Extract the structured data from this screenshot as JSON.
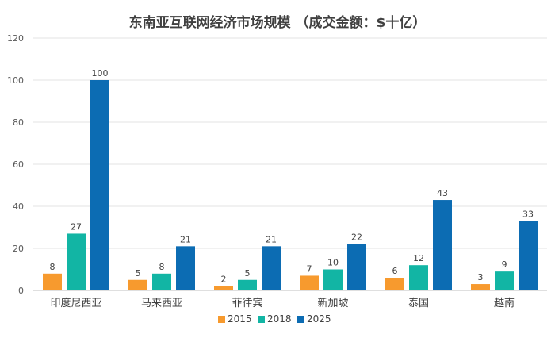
{
  "chart_data": {
    "type": "bar",
    "title": "东南亚互联网经济市场规模  （成交金额：$十亿）",
    "categories": [
      "印度尼西亚",
      "马来西亚",
      "菲律宾",
      "新加坡",
      "泰国",
      "越南"
    ],
    "series": [
      {
        "name": "2015",
        "color": "#f79a2e",
        "values": [
          8,
          5,
          2,
          7,
          6,
          3
        ]
      },
      {
        "name": "2018",
        "color": "#12b5a4",
        "values": [
          27,
          8,
          5,
          10,
          12,
          9
        ]
      },
      {
        "name": "2025",
        "color": "#0c6cb3",
        "values": [
          100,
          21,
          21,
          22,
          43,
          33
        ]
      }
    ],
    "yticks": [
      0,
      20,
      40,
      60,
      80,
      100,
      120
    ],
    "ylim": [
      0,
      120
    ],
    "grid": true,
    "legend_position": "bottom"
  }
}
